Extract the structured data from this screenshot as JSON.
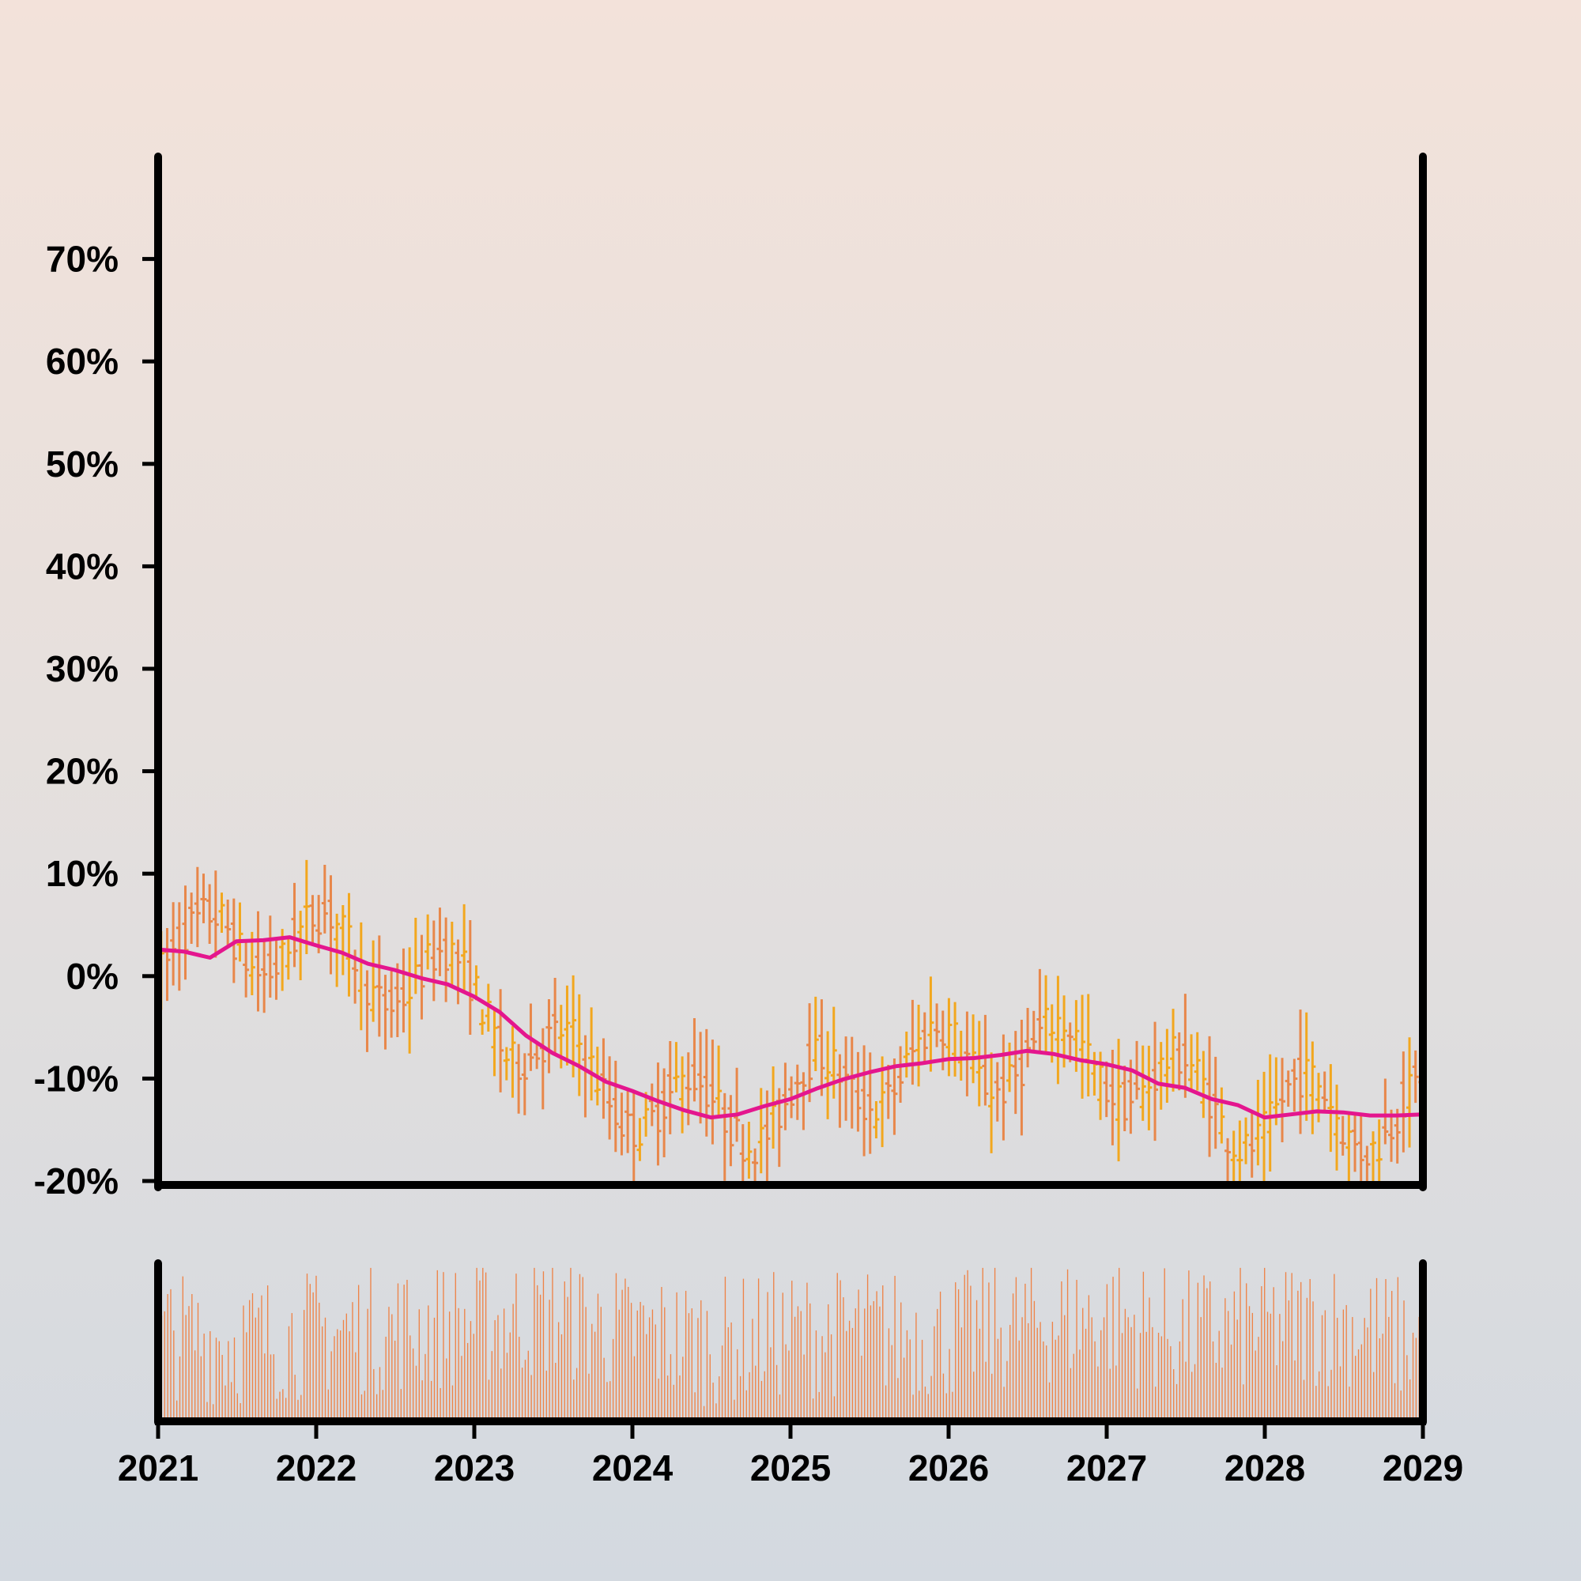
{
  "chart_data": [
    {
      "type": "ohlc",
      "title": "",
      "xlabel": "",
      "ylabel": "",
      "ylim": [
        -20,
        80
      ],
      "yticks": [
        -20,
        -10,
        0,
        10,
        20,
        30,
        40,
        50,
        60,
        70
      ],
      "ytick_labels": [
        "-20%",
        "-10%",
        "0%",
        "10%",
        "20%",
        "30%",
        "40%",
        "50%",
        "60%",
        "70%"
      ],
      "xlim": [
        "2021-01-01",
        "2029-01-01"
      ],
      "xtick_labels": [
        "2021",
        "2022",
        "2023",
        "2024",
        "2025",
        "2026",
        "2027",
        "2028",
        "2029"
      ],
      "bar_interval_days": 14,
      "bar_colors": {
        "up": "#f2a71e",
        "down": "#e8874a"
      },
      "price_anchors": [
        [
          "2021-01-01",
          2.5
        ],
        [
          "2021-04-01",
          2.0
        ],
        [
          "2021-06-01",
          3.5
        ],
        [
          "2021-09-01",
          3.6
        ],
        [
          "2021-11-01",
          3.8
        ],
        [
          "2022-02-01",
          2.5
        ],
        [
          "2022-05-01",
          1.0
        ],
        [
          "2022-08-01",
          0.0
        ],
        [
          "2022-11-01",
          -1.0
        ],
        [
          "2023-02-01",
          -2.5
        ],
        [
          "2023-04-01",
          -5.0
        ],
        [
          "2023-07-01",
          -8.0
        ],
        [
          "2023-10-01",
          -10.5
        ],
        [
          "2024-01-01",
          -11.5
        ],
        [
          "2024-04-01",
          -13.0
        ],
        [
          "2024-07-01",
          -13.8
        ],
        [
          "2024-10-01",
          -13.0
        ],
        [
          "2025-01-01",
          -12.3
        ],
        [
          "2025-04-01",
          -10.8
        ],
        [
          "2025-07-01",
          -9.6
        ],
        [
          "2025-10-01",
          -8.6
        ],
        [
          "2026-01-01",
          -8.2
        ],
        [
          "2026-04-01",
          -7.9
        ],
        [
          "2026-06-01",
          -7.5
        ],
        [
          "2026-08-01",
          -7.5
        ],
        [
          "2026-11-01",
          -8.3
        ],
        [
          "2027-02-01",
          -8.6
        ],
        [
          "2027-05-01",
          -10.5
        ],
        [
          "2027-08-01",
          -12.0
        ],
        [
          "2027-11-01",
          -13.5
        ],
        [
          "2028-02-01",
          -13.5
        ],
        [
          "2028-05-01",
          -13.0
        ],
        [
          "2028-08-01",
          -13.7
        ],
        [
          "2029-01-01",
          -13.5
        ]
      ]
    },
    {
      "type": "line",
      "name": "",
      "color": "#e4168e",
      "x": [
        "2021-01-01",
        "2021-03-01",
        "2021-05-01",
        "2021-07-01",
        "2021-09-01",
        "2021-11-01",
        "2022-01-01",
        "2022-03-01",
        "2022-05-01",
        "2022-07-01",
        "2022-09-01",
        "2022-11-01",
        "2023-01-01",
        "2023-03-01",
        "2023-05-01",
        "2023-07-01",
        "2023-09-01",
        "2023-11-01",
        "2024-01-01",
        "2024-03-01",
        "2024-05-01",
        "2024-07-01",
        "2024-09-01",
        "2024-11-01",
        "2025-01-01",
        "2025-03-01",
        "2025-05-01",
        "2025-07-01",
        "2025-09-01",
        "2025-11-01",
        "2026-01-01",
        "2026-03-01",
        "2026-05-01",
        "2026-07-01",
        "2026-09-01",
        "2026-11-01",
        "2027-01-01",
        "2027-03-01",
        "2027-05-01",
        "2027-07-01",
        "2027-09-01",
        "2027-11-01",
        "2028-01-01",
        "2028-03-01",
        "2028-05-01",
        "2028-07-01",
        "2028-09-01",
        "2028-11-01",
        "2029-01-01"
      ],
      "y": [
        2.6,
        2.4,
        1.8,
        3.4,
        3.5,
        3.8,
        3.0,
        2.3,
        1.2,
        0.6,
        -0.2,
        -0.8,
        -2.0,
        -3.5,
        -5.8,
        -7.5,
        -8.8,
        -10.3,
        -11.2,
        -12.2,
        -13.1,
        -13.8,
        -13.5,
        -12.7,
        -12.0,
        -11.0,
        -10.1,
        -9.4,
        -8.8,
        -8.5,
        -8.1,
        -8.0,
        -7.7,
        -7.3,
        -7.6,
        -8.2,
        -8.6,
        -9.2,
        -10.5,
        -10.9,
        -12.0,
        -12.6,
        -13.8,
        -13.5,
        -13.2,
        -13.3,
        -13.6,
        -13.6,
        -13.5
      ]
    },
    {
      "type": "bar",
      "name": "",
      "color": "#ee8347",
      "x_interval_days": 7,
      "ylim": [
        0,
        100
      ],
      "profile_x": [
        "2021-01-01",
        "2021-07-01",
        "2022-01-01",
        "2022-07-01",
        "2023-01-01",
        "2023-07-01",
        "2024-01-01",
        "2024-07-01",
        "2025-01-01",
        "2025-07-01",
        "2026-01-01",
        "2026-07-01",
        "2027-01-01",
        "2027-07-01",
        "2028-01-01",
        "2028-07-01",
        "2029-01-01"
      ],
      "profile_y": [
        55,
        50,
        55,
        58,
        62,
        68,
        55,
        50,
        55,
        56,
        54,
        62,
        66,
        55,
        60,
        63,
        48
      ]
    }
  ]
}
